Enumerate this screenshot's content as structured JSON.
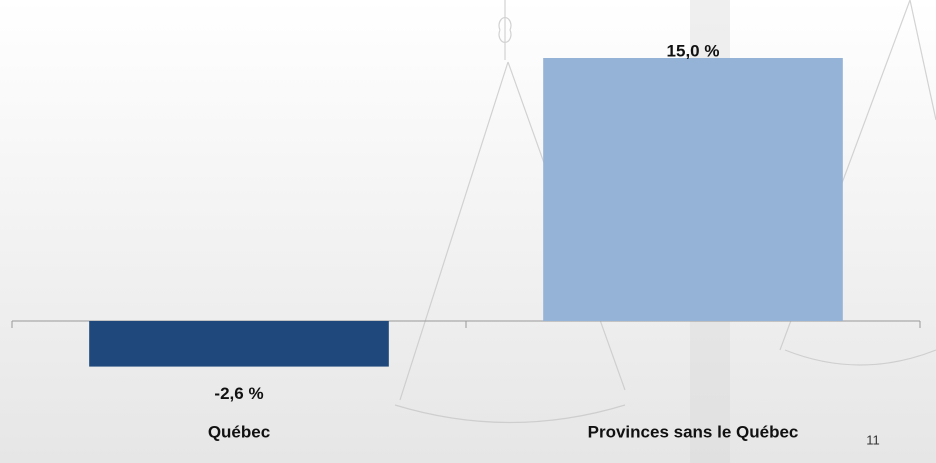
{
  "chart_data": {
    "type": "bar",
    "categories": [
      "Québec",
      "Provinces sans le Québec"
    ],
    "values": [
      -2.6,
      15.0
    ],
    "value_labels": [
      "-2,6 %",
      "15,0 %"
    ],
    "colors": [
      "#1f497d",
      "#95b3d7"
    ]
  },
  "page_number": "11"
}
